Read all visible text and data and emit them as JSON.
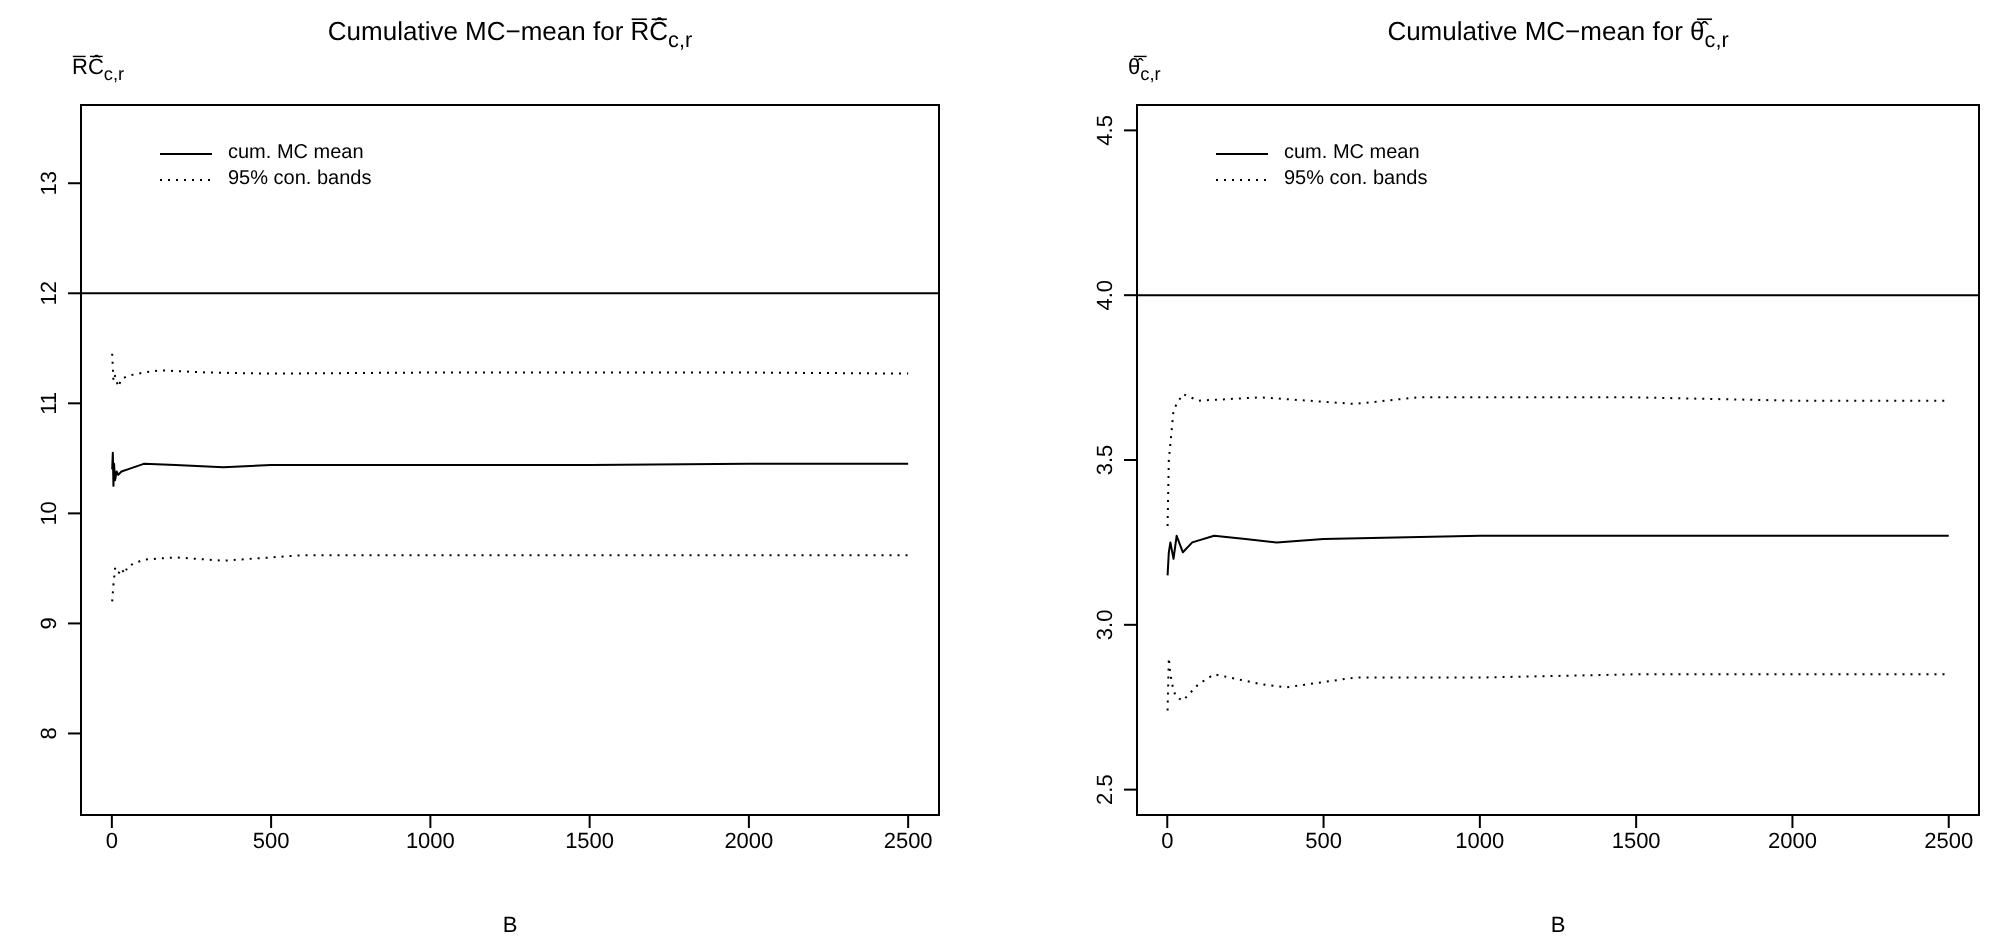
{
  "chart_data": [
    {
      "type": "line",
      "title": "Cumulative MC−mean for R̅Ĉ̅$_{c,r}$",
      "xlabel": "B",
      "ylabel": "R̅Ĉ̅$_{c,r}$",
      "xlim": [
        -100,
        2600
      ],
      "xticks": [
        0,
        500,
        1000,
        1500,
        2000,
        2500
      ],
      "ylim": [
        7.25,
        13.72
      ],
      "yticks": [
        8,
        9,
        10,
        11,
        12,
        13
      ],
      "legend": "top left",
      "ref_lines": [
        {
          "axis": "y",
          "value": 12,
          "color": "#000000"
        }
      ],
      "series": [
        {
          "name": "cum. MC mean",
          "color": "#000000",
          "line_style": "solid",
          "x": [
            1,
            3,
            5,
            7,
            10,
            15,
            20,
            30,
            50,
            100,
            200,
            350,
            500,
            1000,
            1500,
            2000,
            2500
          ],
          "values": [
            10.4,
            10.55,
            10.25,
            10.45,
            10.3,
            10.38,
            10.35,
            10.38,
            10.4,
            10.45,
            10.44,
            10.42,
            10.44,
            10.44,
            10.44,
            10.45,
            10.45
          ]
        },
        {
          "name": "95% con. bands",
          "color": "#000000",
          "line_style": "dotted",
          "x": [
            1,
            5,
            10,
            20,
            30,
            50,
            100,
            150,
            300,
            500,
            1000,
            1500,
            2000,
            2500
          ],
          "values": [
            11.45,
            11.2,
            11.25,
            11.15,
            11.22,
            11.25,
            11.28,
            11.3,
            11.28,
            11.27,
            11.28,
            11.28,
            11.28,
            11.27
          ]
        },
        {
          "color": "#000000",
          "line_style": "dotted",
          "x": [
            1,
            5,
            10,
            20,
            30,
            40,
            50,
            100,
            200,
            350,
            600,
            1000,
            1500,
            2000,
            2500
          ],
          "values": [
            9.2,
            9.35,
            9.5,
            9.45,
            9.5,
            9.45,
            9.52,
            9.58,
            9.6,
            9.57,
            9.62,
            9.62,
            9.62,
            9.62,
            9.62
          ]
        }
      ]
    },
    {
      "type": "line",
      "title": "Cumulative MC−mean for θ̂̅$_{c,r}$",
      "xlabel": "B",
      "ylabel": "θ̂̅$_{c,r}$",
      "xlim": [
        -100,
        2600
      ],
      "xticks": [
        0,
        500,
        1000,
        1500,
        2000,
        2500
      ],
      "ylim": [
        2.42,
        4.58
      ],
      "yticks": [
        {
          "value": 2.5,
          "label": "2.5"
        },
        {
          "value": 3,
          "label": "3.0"
        },
        {
          "value": 3.5,
          "label": "3.5"
        },
        {
          "value": 4,
          "label": "4.0"
        },
        {
          "value": 4.5,
          "label": "4.5"
        }
      ],
      "legend": "top left",
      "ref_lines": [
        {
          "axis": "y",
          "value": 4,
          "color": "#000000"
        }
      ],
      "series": [
        {
          "name": "cum. MC mean",
          "color": "#000000",
          "line_style": "solid",
          "x": [
            1,
            5,
            10,
            20,
            30,
            50,
            80,
            150,
            250,
            350,
            500,
            1000,
            1500,
            2000,
            2500
          ],
          "values": [
            3.15,
            3.22,
            3.25,
            3.2,
            3.27,
            3.22,
            3.25,
            3.27,
            3.26,
            3.25,
            3.26,
            3.27,
            3.27,
            3.27,
            3.27
          ]
        },
        {
          "name": "95% con. bands",
          "color": "#000000",
          "line_style": "dotted",
          "x": [
            1,
            5,
            10,
            20,
            30,
            50,
            100,
            300,
            600,
            800,
            1500,
            2000,
            2500
          ],
          "values": [
            3.3,
            3.5,
            3.55,
            3.65,
            3.67,
            3.7,
            3.68,
            3.69,
            3.67,
            3.69,
            3.69,
            3.68,
            3.68
          ]
        },
        {
          "color": "#000000",
          "line_style": "dotted",
          "x": [
            1,
            5,
            10,
            20,
            30,
            50,
            100,
            150,
            300,
            380,
            600,
            1000,
            1500,
            2000,
            2500
          ],
          "values": [
            2.74,
            2.9,
            2.85,
            2.8,
            2.78,
            2.77,
            2.82,
            2.85,
            2.82,
            2.81,
            2.84,
            2.84,
            2.85,
            2.85,
            2.85
          ]
        }
      ]
    }
  ]
}
